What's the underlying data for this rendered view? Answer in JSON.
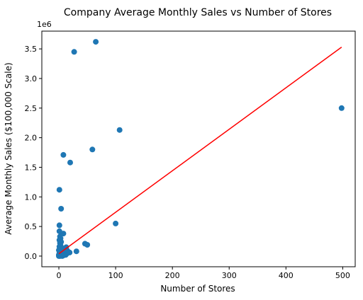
{
  "chart_data": {
    "type": "scatter",
    "title": "Company Average Monthly Sales vs Number of Stores",
    "xlabel": "Number of Stores",
    "ylabel": "Average Monthly Sales ($100,000 Scale)",
    "y_offset_label": "1e6",
    "xlim": [
      -30,
      522
    ],
    "ylim": [
      -0.18,
      3.8
    ],
    "xticks": [
      0,
      100,
      200,
      300,
      400,
      500
    ],
    "xtick_labels": [
      "0",
      "100",
      "200",
      "300",
      "400",
      "500"
    ],
    "yticks": [
      0.0,
      0.5,
      1.0,
      1.5,
      2.0,
      2.5,
      3.0,
      3.5
    ],
    "ytick_labels": [
      "0.0",
      "0.5",
      "1.0",
      "1.5",
      "2.0",
      "2.5",
      "3.0",
      "3.5"
    ],
    "grid": false,
    "colors": {
      "points": "#1f77b4",
      "trend": "#ff0000"
    },
    "series": [
      {
        "kind": "points",
        "points": [
          {
            "x": 65,
            "y": 3.62
          },
          {
            "x": 27,
            "y": 3.45
          },
          {
            "x": 498,
            "y": 2.5
          },
          {
            "x": 107,
            "y": 2.13
          },
          {
            "x": 59,
            "y": 1.8
          },
          {
            "x": 8,
            "y": 1.71
          },
          {
            "x": 20,
            "y": 1.58
          },
          {
            "x": 1,
            "y": 1.12
          },
          {
            "x": 4,
            "y": 0.8
          },
          {
            "x": 100,
            "y": 0.55
          },
          {
            "x": 1,
            "y": 0.52
          },
          {
            "x": 1,
            "y": 0.42
          },
          {
            "x": 8,
            "y": 0.38
          },
          {
            "x": 2,
            "y": 0.33
          },
          {
            "x": 3,
            "y": 0.3
          },
          {
            "x": 1,
            "y": 0.27
          },
          {
            "x": 4,
            "y": 0.24
          },
          {
            "x": 2,
            "y": 0.22
          },
          {
            "x": 46,
            "y": 0.21
          },
          {
            "x": 50,
            "y": 0.19
          },
          {
            "x": 3,
            "y": 0.18
          },
          {
            "x": 1,
            "y": 0.16
          },
          {
            "x": 13,
            "y": 0.15
          },
          {
            "x": 5,
            "y": 0.14
          },
          {
            "x": 2,
            "y": 0.12
          },
          {
            "x": 9,
            "y": 0.11
          },
          {
            "x": 0,
            "y": 0.1
          },
          {
            "x": 15,
            "y": 0.09
          },
          {
            "x": 31,
            "y": 0.08
          },
          {
            "x": 6,
            "y": 0.08
          },
          {
            "x": 3,
            "y": 0.07
          },
          {
            "x": 19,
            "y": 0.06
          },
          {
            "x": 11,
            "y": 0.06
          },
          {
            "x": 1,
            "y": 0.05
          },
          {
            "x": 7,
            "y": 0.05
          },
          {
            "x": 4,
            "y": 0.04
          },
          {
            "x": 14,
            "y": 0.04
          },
          {
            "x": 2,
            "y": 0.03
          },
          {
            "x": 10,
            "y": 0.03
          },
          {
            "x": 5,
            "y": 0.02
          },
          {
            "x": 0,
            "y": 0.02
          },
          {
            "x": 12,
            "y": 0.02
          },
          {
            "x": 3,
            "y": 0.01
          },
          {
            "x": 8,
            "y": 0.01
          },
          {
            "x": 1,
            "y": 0.01
          },
          {
            "x": 6,
            "y": 0.0
          },
          {
            "x": 0,
            "y": 0.0
          },
          {
            "x": 2,
            "y": 0.0
          }
        ]
      },
      {
        "kind": "trend_line",
        "x": [
          0,
          498
        ],
        "y": [
          0.04,
          3.53
        ]
      }
    ]
  }
}
